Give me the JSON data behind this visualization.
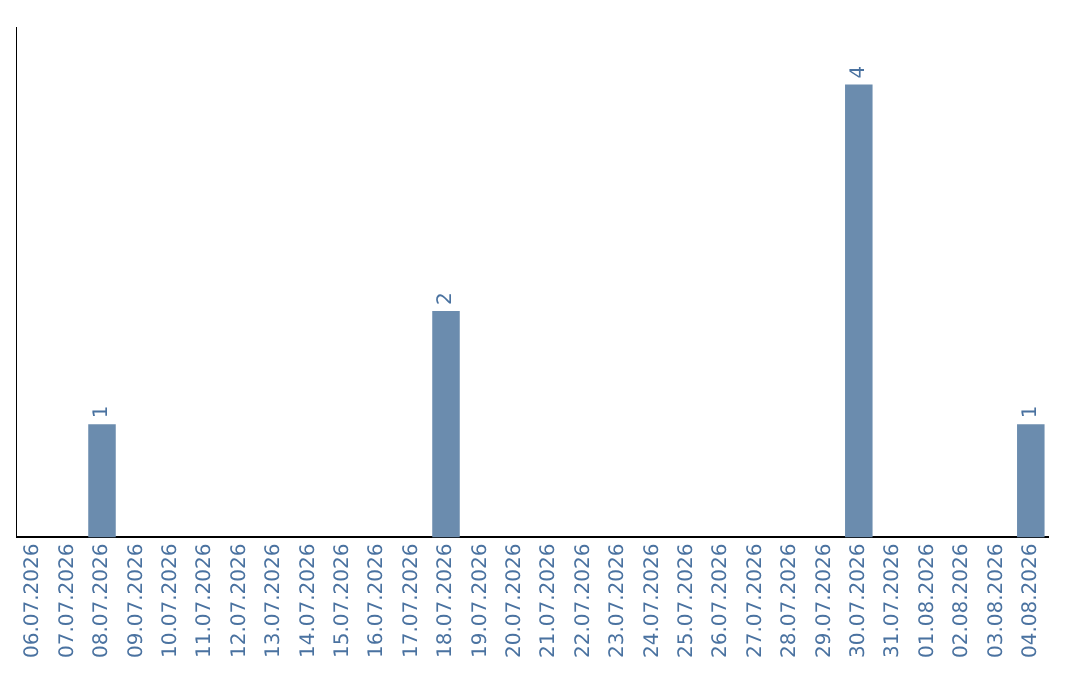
{
  "chart_data": {
    "type": "bar",
    "categories": [
      "06.07.2026",
      "07.07.2026",
      "08.07.2026",
      "09.07.2026",
      "10.07.2026",
      "11.07.2026",
      "12.07.2026",
      "13.07.2026",
      "14.07.2026",
      "15.07.2026",
      "16.07.2026",
      "17.07.2026",
      "18.07.2026",
      "19.07.2026",
      "20.07.2026",
      "21.07.2026",
      "22.07.2026",
      "23.07.2026",
      "24.07.2026",
      "25.07.2026",
      "26.07.2026",
      "27.07.2026",
      "28.07.2026",
      "29.07.2026",
      "30.07.2026",
      "31.07.2026",
      "01.08.2026",
      "02.08.2026",
      "03.08.2026",
      "04.08.2026"
    ],
    "values": [
      0,
      0,
      1,
      0,
      0,
      0,
      0,
      0,
      0,
      0,
      0,
      0,
      2,
      0,
      0,
      0,
      0,
      0,
      0,
      0,
      0,
      0,
      0,
      0,
      4,
      0,
      0,
      0,
      0,
      1
    ],
    "value_labels": [
      null,
      null,
      "1",
      null,
      null,
      null,
      null,
      null,
      null,
      null,
      null,
      null,
      "2",
      null,
      null,
      null,
      null,
      null,
      null,
      null,
      null,
      null,
      null,
      null,
      "4",
      null,
      null,
      null,
      null,
      "1"
    ],
    "color": "#6b8cae",
    "grid": false,
    "legend": false,
    "tick_labels": "x"
  }
}
